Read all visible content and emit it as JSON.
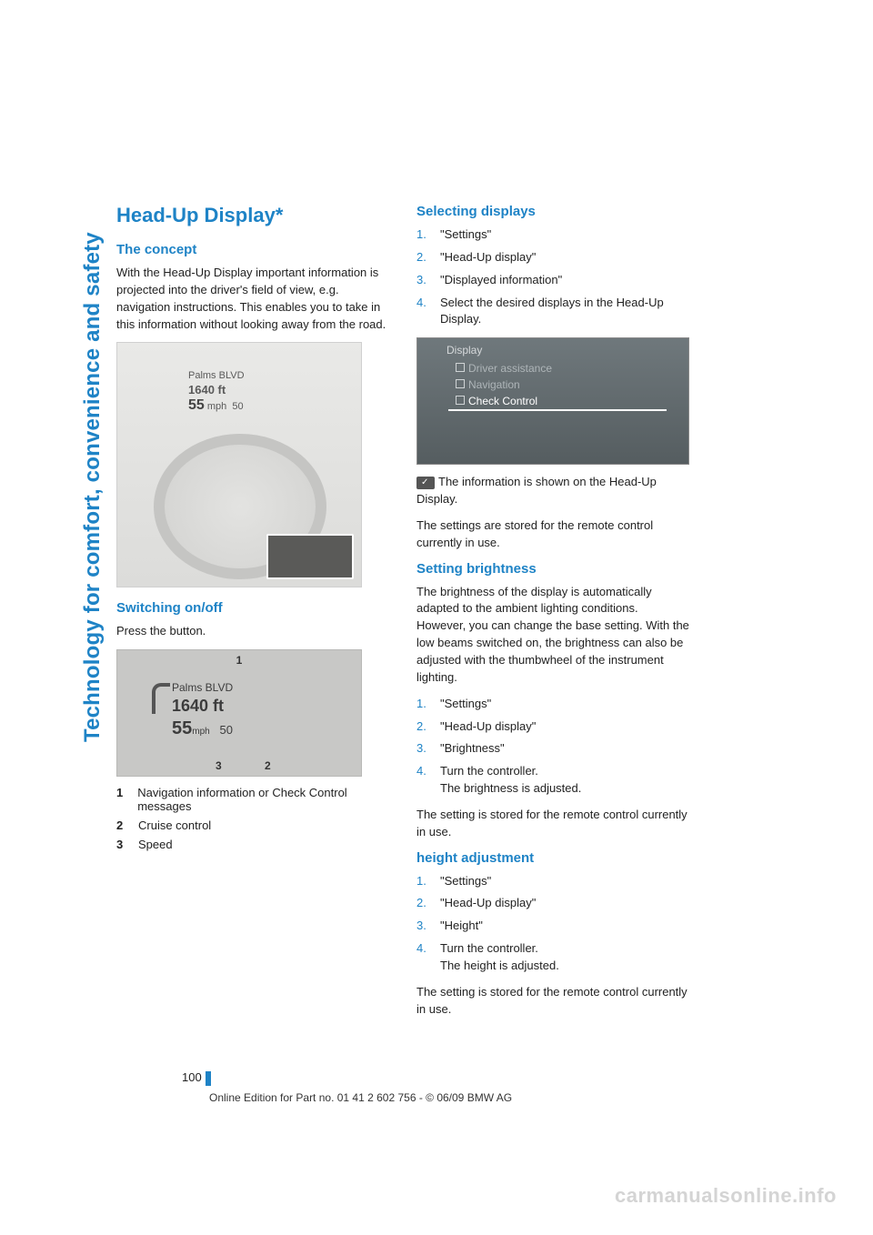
{
  "side_label": "Technology for comfort, convenience and safety",
  "colors": {
    "accent": "#1e83c6",
    "text": "#222222",
    "watermark": "#d4d4d4",
    "fig_bg": "#c8c8c6",
    "menu_bg_top": "#6f787c",
    "menu_bg_bottom": "#555d60"
  },
  "left": {
    "h1": "Head-Up Display*",
    "concept": {
      "heading": "The concept",
      "body": "With the Head-Up Display important information is projected into the driver's field of view, e.g. navigation instructions. This enables you to take in this information without looking away from the road."
    },
    "dash_fig": {
      "road": "Palms BLVD",
      "distance": "1640 ft",
      "speed": "55",
      "unit": "mph",
      "limit": "50"
    },
    "switch": {
      "heading": "Switching on/off",
      "body": "Press the button."
    },
    "hud_fig": {
      "labels": {
        "l1": "1",
        "l2": "2",
        "l3": "3"
      },
      "road": "Palms BLVD",
      "distance": "1640 ft",
      "speed": "55",
      "unit": "mph",
      "limit": "50"
    },
    "legend": [
      {
        "num": "1",
        "text": "Navigation information or Check Control messages"
      },
      {
        "num": "2",
        "text": "Cruise control"
      },
      {
        "num": "3",
        "text": "Speed"
      }
    ]
  },
  "right": {
    "selecting": {
      "heading": "Selecting displays",
      "steps": [
        "\"Settings\"",
        "\"Head-Up display\"",
        "\"Displayed information\"",
        "Select the desired displays in the Head-Up Display."
      ]
    },
    "menu_fig": {
      "header": "Display",
      "items": [
        "Driver assistance",
        "Navigation",
        "Check Control"
      ]
    },
    "after_menu_1": "The information is shown on the Head-Up Display.",
    "after_menu_2": "The settings are stored for the remote control currently in use.",
    "brightness": {
      "heading": "Setting brightness",
      "body": "The brightness of the display is automatically adapted to the ambient lighting conditions. However, you can change the base setting. With the low beams switched on, the brightness can also be adjusted with the thumbwheel of the instrument lighting.",
      "steps": [
        "\"Settings\"",
        "\"Head-Up display\"",
        "\"Brightness\"",
        "Turn the controller."
      ],
      "step4_sub": "The brightness is adjusted.",
      "after": "The setting is stored for the remote control currently in use."
    },
    "height": {
      "heading": "height adjustment",
      "steps": [
        "\"Settings\"",
        "\"Head-Up display\"",
        "\"Height\"",
        "Turn the controller."
      ],
      "step4_sub": "The height is adjusted.",
      "after": "The setting is stored for the remote control currently in use."
    }
  },
  "page_number": "100",
  "footer": "Online Edition for Part no. 01 41 2 602 756 - © 06/09 BMW AG",
  "watermark": "carmanualsonline.info"
}
